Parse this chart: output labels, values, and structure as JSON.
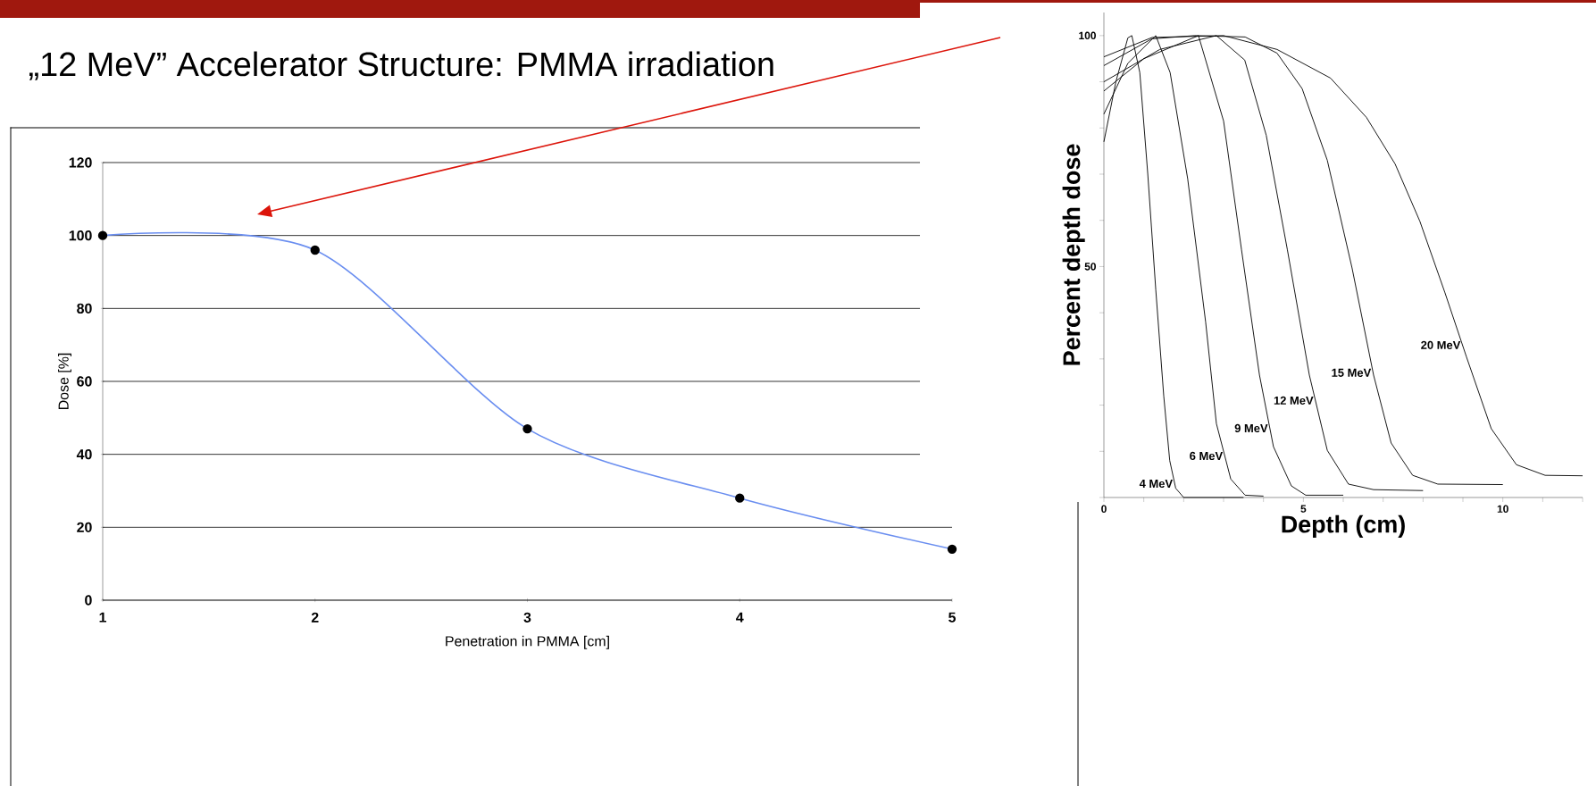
{
  "chart_data": [
    {
      "type": "line",
      "title": "„12 MeV” Accelerator Structure: PMMA irradiation",
      "xlabel": "Penetration in PMMA [cm]",
      "ylabel": "Dose [%]",
      "x": [
        1,
        2,
        3,
        4,
        5
      ],
      "series": [
        {
          "color": "#6a8ef0",
          "values": [
            100,
            96,
            47,
            28,
            14
          ]
        }
      ],
      "xlim": [
        1,
        5
      ],
      "ylim": [
        0,
        120
      ],
      "xticks": [
        1,
        2,
        3,
        4,
        5
      ],
      "yticks": [
        0,
        20,
        40,
        60,
        80,
        100,
        120
      ],
      "grid": "y",
      "marker": "circle"
    },
    {
      "type": "line",
      "xlabel": "Depth (cm)",
      "ylabel": "Percent depth dose",
      "series": [
        {
          "name": "4 MeV",
          "color": "#000000",
          "x": [
            0,
            0.3,
            0.6,
            0.7,
            0.9,
            1.1,
            1.3,
            1.5,
            1.65,
            1.8,
            2,
            3.5
          ],
          "values": [
            77,
            90,
            99.5,
            100,
            92,
            70,
            45,
            22,
            8,
            2,
            0,
            0
          ]
        },
        {
          "name": "6 MeV",
          "color": "#000000",
          "x": [
            0,
            0.6,
            1.3,
            1.66,
            2.1,
            2.55,
            2.82,
            3.18,
            3.54,
            4
          ],
          "values": [
            83,
            94,
            100,
            92,
            69,
            38,
            16,
            4,
            0.5,
            0.3
          ]
        },
        {
          "name": "9 MeV",
          "color": "#000000",
          "x": [
            0,
            1,
            2.37,
            3,
            3.45,
            3.9,
            4.25,
            4.7,
            5.06,
            6
          ],
          "values": [
            88,
            95,
            100,
            81.5,
            53.6,
            26.5,
            11,
            2.5,
            0.5,
            0.5
          ]
        },
        {
          "name": "12 MeV",
          "color": "#000000",
          "x": [
            0,
            1.4,
            2.82,
            3.53,
            4.07,
            4.6,
            5.15,
            5.6,
            6.13,
            6.76,
            8
          ],
          "values": [
            90,
            97,
            100,
            94.7,
            78.4,
            53.6,
            26.5,
            10.2,
            2.9,
            1.7,
            1.5
          ]
        },
        {
          "name": "15 MeV",
          "color": "#000000",
          "x": [
            0,
            1.2,
            2.28,
            3.54,
            4.34,
            4.97,
            5.6,
            6.22,
            6.76,
            7.2,
            7.74,
            8.37,
            10
          ],
          "values": [
            93.5,
            99.3,
            100,
            99.7,
            96.2,
            88.5,
            73,
            49.7,
            26.5,
            11.8,
            4.8,
            2.9,
            2.8
          ]
        },
        {
          "name": "20 MeV",
          "color": "#000000",
          "x": [
            0,
            1.21,
            3,
            4.34,
            5.68,
            6.58,
            7.3,
            7.92,
            8.55,
            9.09,
            9.71,
            10.34,
            11.06,
            12
          ],
          "values": [
            95.4,
            99.6,
            100,
            97,
            90.8,
            82.3,
            72.2,
            59.8,
            44.3,
            30.4,
            14.9,
            7.1,
            4.8,
            4.7
          ]
        }
      ],
      "xlim": [
        0,
        12
      ],
      "ylim": [
        0,
        105
      ],
      "xticks": [
        0,
        {
          "value": 1,
          "label": null
        },
        {
          "value": 2,
          "label": null
        },
        {
          "value": 3,
          "label": null
        },
        {
          "value": 4,
          "label": null
        },
        5,
        {
          "value": 6,
          "label": null
        },
        {
          "value": 7,
          "label": null
        },
        {
          "value": 8,
          "label": null
        },
        {
          "value": 9,
          "label": null
        },
        10,
        {
          "value": 11,
          "label": null
        },
        {
          "value": 12,
          "label": null
        }
      ],
      "yticks": [
        {
          "value": 0,
          "label": null
        },
        {
          "value": 10,
          "label": null
        },
        {
          "value": 20,
          "label": null
        },
        {
          "value": 30,
          "label": null
        },
        {
          "value": 40,
          "label": null
        },
        50,
        {
          "value": 60,
          "label": null
        },
        {
          "value": 70,
          "label": null
        },
        {
          "value": 80,
          "label": null
        },
        {
          "value": 90,
          "label": null
        },
        100
      ]
    }
  ]
}
